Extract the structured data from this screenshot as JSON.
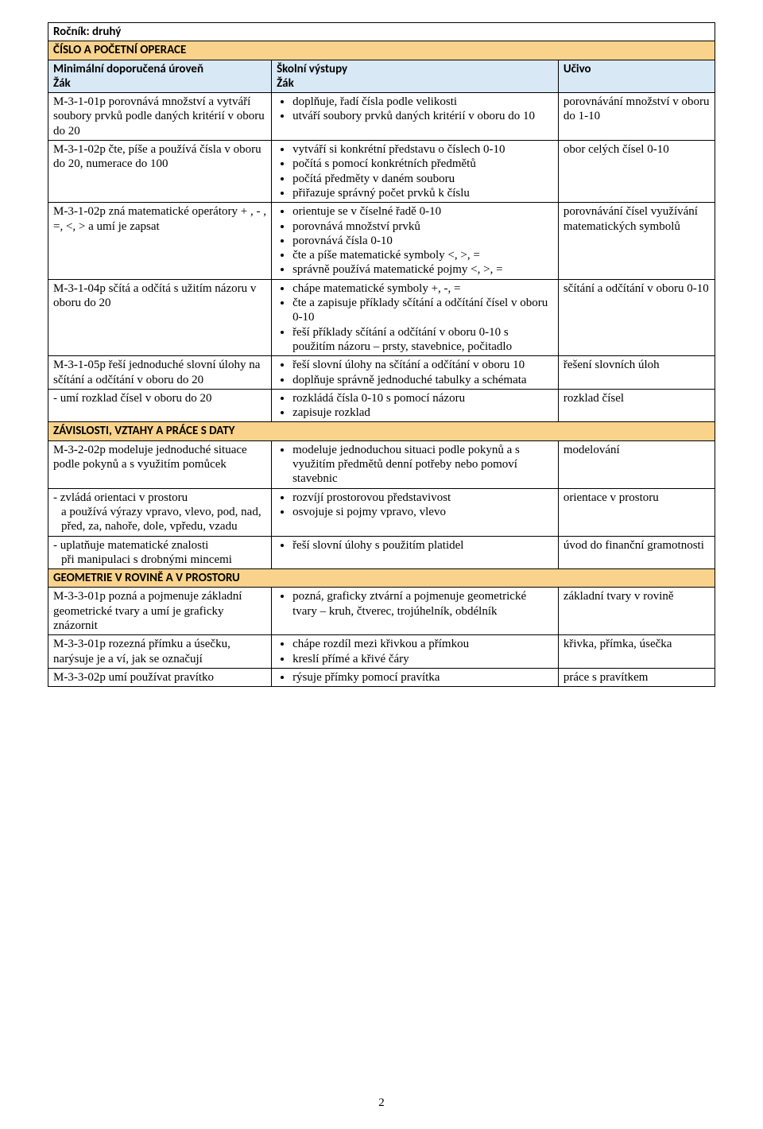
{
  "rocnik_label": "Ročník: druhý",
  "headers": {
    "left_line1": "Minimální doporučená úroveň",
    "left_line2": "Žák",
    "mid_line1": "Školní výstupy",
    "mid_line2": "Žák",
    "right_line1": "Učivo"
  },
  "section1": "ČÍSLO A POČETNÍ OPERACE",
  "section2": "ZÁVISLOSTI, VZTAHY A PRÁCE S DATY",
  "section3": "GEOMETRIE V ROVINĚ A V PROSTORU",
  "rows1": [
    {
      "left": "M-3-1-01p porovnává množství a vytváří soubory prvků podle daných kritérií v oboru do 20",
      "mid": [
        "doplňuje, řadí čísla podle velikosti",
        "utváří soubory prvků daných kritérií v oboru do 10"
      ],
      "right": "porovnávání množství v oboru do 1-10"
    },
    {
      "left": "M-3-1-02p čte, píše a používá čísla v oboru do 20, numerace do 100",
      "mid": [
        "vytváří si konkrétní představu o číslech 0-10",
        "počítá s pomocí konkrétních předmětů",
        "počítá předměty v daném souboru",
        "přiřazuje správný počet prvků k číslu"
      ],
      "right": "obor celých čísel 0-10"
    },
    {
      "left": "M-3-1-02p zná matematické operátory + , - , =, <, > a umí je zapsat",
      "mid": [
        "orientuje se v číselné řadě 0-10",
        "porovnává množství prvků",
        "porovnává čísla 0-10",
        "čte a píše matematické symboly <, >, =",
        "správně používá matematické pojmy <, >, ="
      ],
      "right": "porovnávání čísel využívání matematických symbolů"
    },
    {
      "left": "M-3-1-04p sčítá a odčítá s užitím názoru v oboru do 20",
      "mid": [
        "chápe matematické symboly +,  -, =",
        "čte a zapisuje příklady sčítání a odčítání čísel v oboru 0-10",
        "řeší příklady sčítání a odčítání v oboru 0-10 s použitím názoru – prsty, stavebnice, počitadlo"
      ],
      "right": "sčítání a odčítání v oboru 0-10"
    },
    {
      "left": "M-3-1-05p řeší jednoduché slovní úlohy na sčítání a odčítání v oboru do 20",
      "mid": [
        "řeší slovní úlohy na sčítání a odčítání v oboru 10",
        "doplňuje správně jednoduché tabulky a schémata"
      ],
      "right": "řešení slovních úloh"
    },
    {
      "left": "- umí rozklad čísel v oboru do 20",
      "mid": [
        "rozkládá čísla 0-10 s pomocí názoru",
        "zapisuje rozklad"
      ],
      "right": "rozklad čísel"
    }
  ],
  "rows2": [
    {
      "left": "M-3-2-02p modeluje jednoduché situace podle pokynů a s využitím pomůcek",
      "mid": [
        "modeluje jednoduchou situaci podle pokynů a s využitím předmětů denní potřeby nebo pomoví stavebnic"
      ],
      "right": "modelování"
    },
    {
      "left_lines": [
        "- zvládá orientaci v prostoru",
        "a používá výrazy vpravo, vlevo, pod, nad, před, za, nahoře, dole, vpředu, vzadu"
      ],
      "mid": [
        "rozvíjí prostorovou představivost",
        "osvojuje si pojmy vpravo, vlevo"
      ],
      "right": "orientace v prostoru"
    },
    {
      "left_lines": [
        "- uplatňuje matematické znalosti",
        "při manipulaci s drobnými mincemi"
      ],
      "mid": [
        "řeší slovní úlohy s použitím platidel"
      ],
      "right": "úvod do finanční gramotnosti"
    }
  ],
  "rows3": [
    {
      "left": "M-3-3-01p pozná a pojmenuje základní geometrické tvary a umí je graficky znázornit",
      "mid": [
        "pozná, graficky ztvární a pojmenuje geometrické tvary – kruh, čtverec, trojúhelník, obdélník"
      ],
      "right": "základní tvary v rovině"
    },
    {
      "left": "M-3-3-01p rozezná přímku a úsečku, narýsuje je a ví, jak se označují",
      "mid": [
        "chápe rozdíl mezi křivkou a přímkou",
        "kreslí přímé a křivé čáry"
      ],
      "right": "křivka, přímka, úsečka"
    },
    {
      "left": "M-3-3-02p umí používat pravítko",
      "mid": [
        "rýsuje přímky pomocí pravítka"
      ],
      "right": "práce s pravítkem"
    }
  ],
  "pagenum": "2",
  "colors": {
    "section_bg": "#f9d38c",
    "header_bg": "#d9e8f5",
    "border": "#000000",
    "page_bg": "#ffffff"
  }
}
